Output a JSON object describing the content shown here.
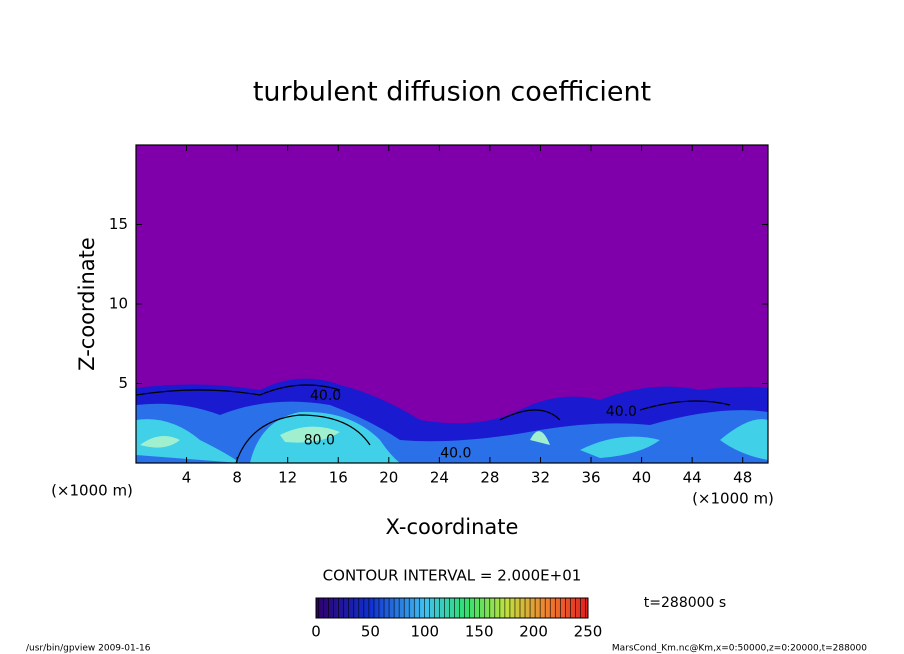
{
  "chart_data": {
    "type": "contour",
    "title": "turbulent diffusion coefficient",
    "x_label": "X-coordinate",
    "y_label": "Z-coordinate",
    "x_unit": "(×1000 m)",
    "xlim": [
      0,
      50
    ],
    "xticks": [
      4,
      8,
      12,
      16,
      20,
      24,
      28,
      32,
      36,
      40,
      44,
      48
    ],
    "ylim": [
      0,
      20
    ],
    "yticks": [
      5,
      10,
      15
    ],
    "background_color": "#7f00aa",
    "contour_labels": [
      {
        "x": 15,
        "y": 4.2,
        "label": "40.0"
      },
      {
        "x": 14.5,
        "y": 1.4,
        "label": "80.0"
      },
      {
        "x": 25.3,
        "y": 0.6,
        "label": "40.0"
      },
      {
        "x": 38.4,
        "y": 3.2,
        "label": "40.0"
      }
    ],
    "contour_interval": "CONTOUR INTERVAL = 2.000E+01",
    "colorbar": {
      "clim": [
        0,
        250
      ],
      "ticks": [
        0,
        50,
        100,
        150,
        200,
        250
      ]
    },
    "time_label": "t=288000 s",
    "footer_left": "/usr/bin/gpview  2009-01-16",
    "footer_right": "MarsCond_Km.nc@Km,x=0:50000,z=0:20000,t=288000"
  }
}
